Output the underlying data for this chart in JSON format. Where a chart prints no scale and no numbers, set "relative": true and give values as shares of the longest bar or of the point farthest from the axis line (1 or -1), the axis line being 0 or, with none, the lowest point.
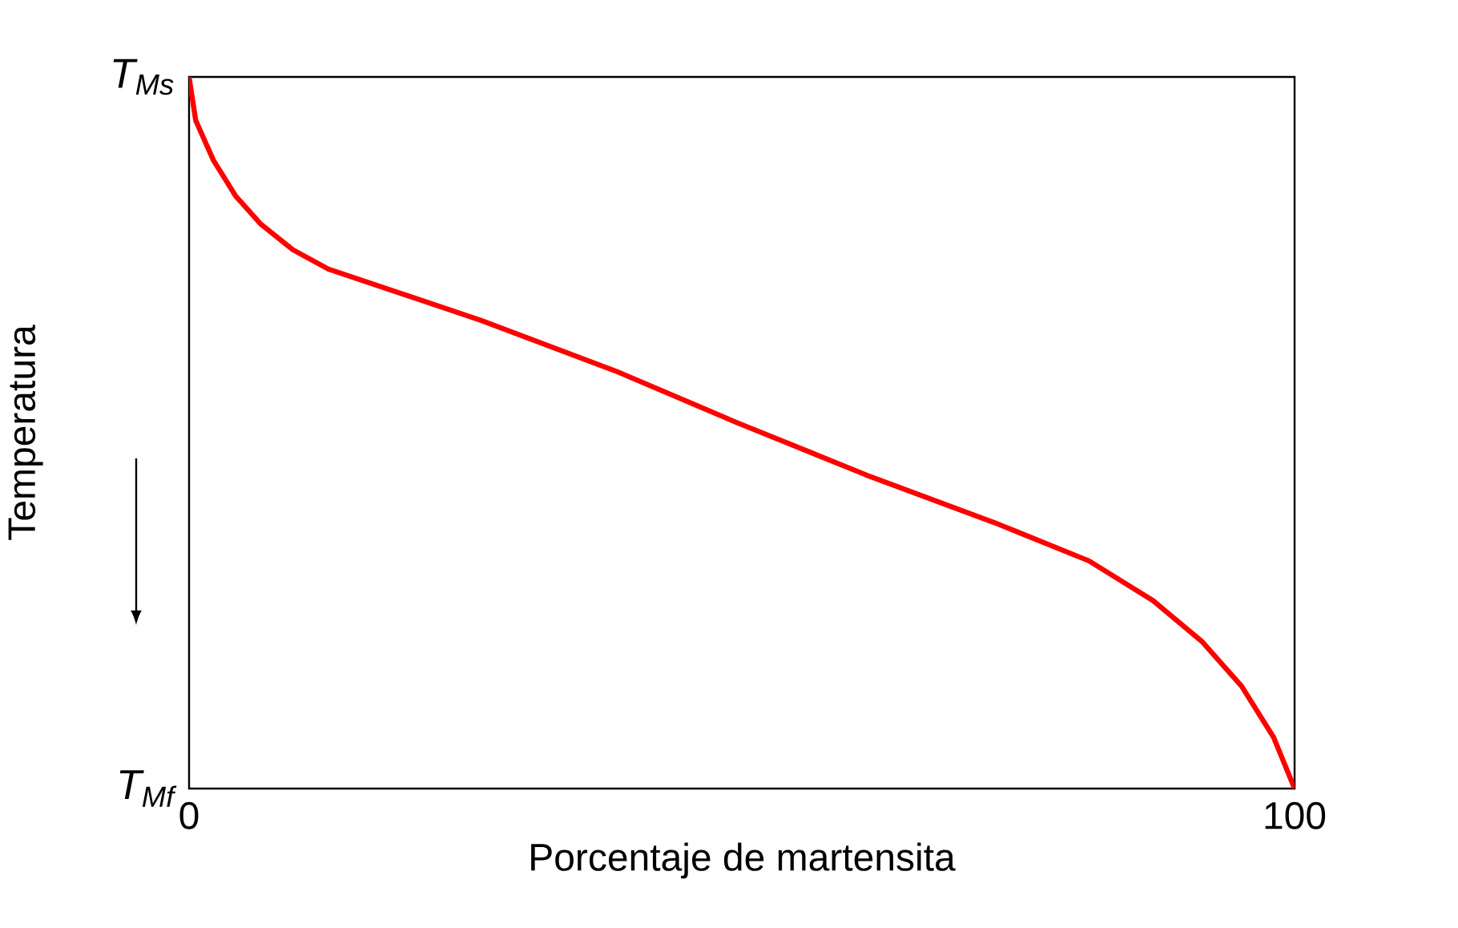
{
  "chart_data": {
    "type": "line",
    "xlabel": "Porcentaje de martensita",
    "ylabel": "Temperatura",
    "relative": true,
    "annotations": [
      "T$_{Ms}$",
      "T$_{Mf}$"
    ],
    "x": [
      0,
      0.6,
      2.2,
      4.2,
      6.5,
      9.4,
      12.6,
      26.4,
      38.7,
      49.6,
      61.2,
      72.8,
      81.4,
      87.2,
      91.6,
      95.2,
      98.1,
      100
    ],
    "series": [
      {
        "color": "#ff0000",
        "values": [
          1,
          0.939,
          0.883,
          0.833,
          0.793,
          0.757,
          0.73,
          0.658,
          0.586,
          0.514,
          0.441,
          0.374,
          0.32,
          0.264,
          0.207,
          0.144,
          0.072,
          0
        ]
      }
    ],
    "xlim": [
      0,
      100
    ],
    "xticks": [
      0,
      100
    ],
    "marker": "none",
    "line_style": "solid"
  }
}
